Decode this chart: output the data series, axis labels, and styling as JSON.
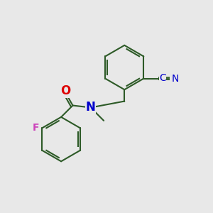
{
  "background_color": "#e8e8e8",
  "bond_color": "#2d5a27",
  "O_color": "#dd0000",
  "N_color": "#0000cc",
  "F_color": "#cc44bb",
  "line_width": 1.5,
  "font_size": 10,
  "figsize": [
    3.0,
    3.0
  ],
  "dpi": 100,
  "xlim": [
    0,
    10
  ],
  "ylim": [
    0,
    10
  ]
}
